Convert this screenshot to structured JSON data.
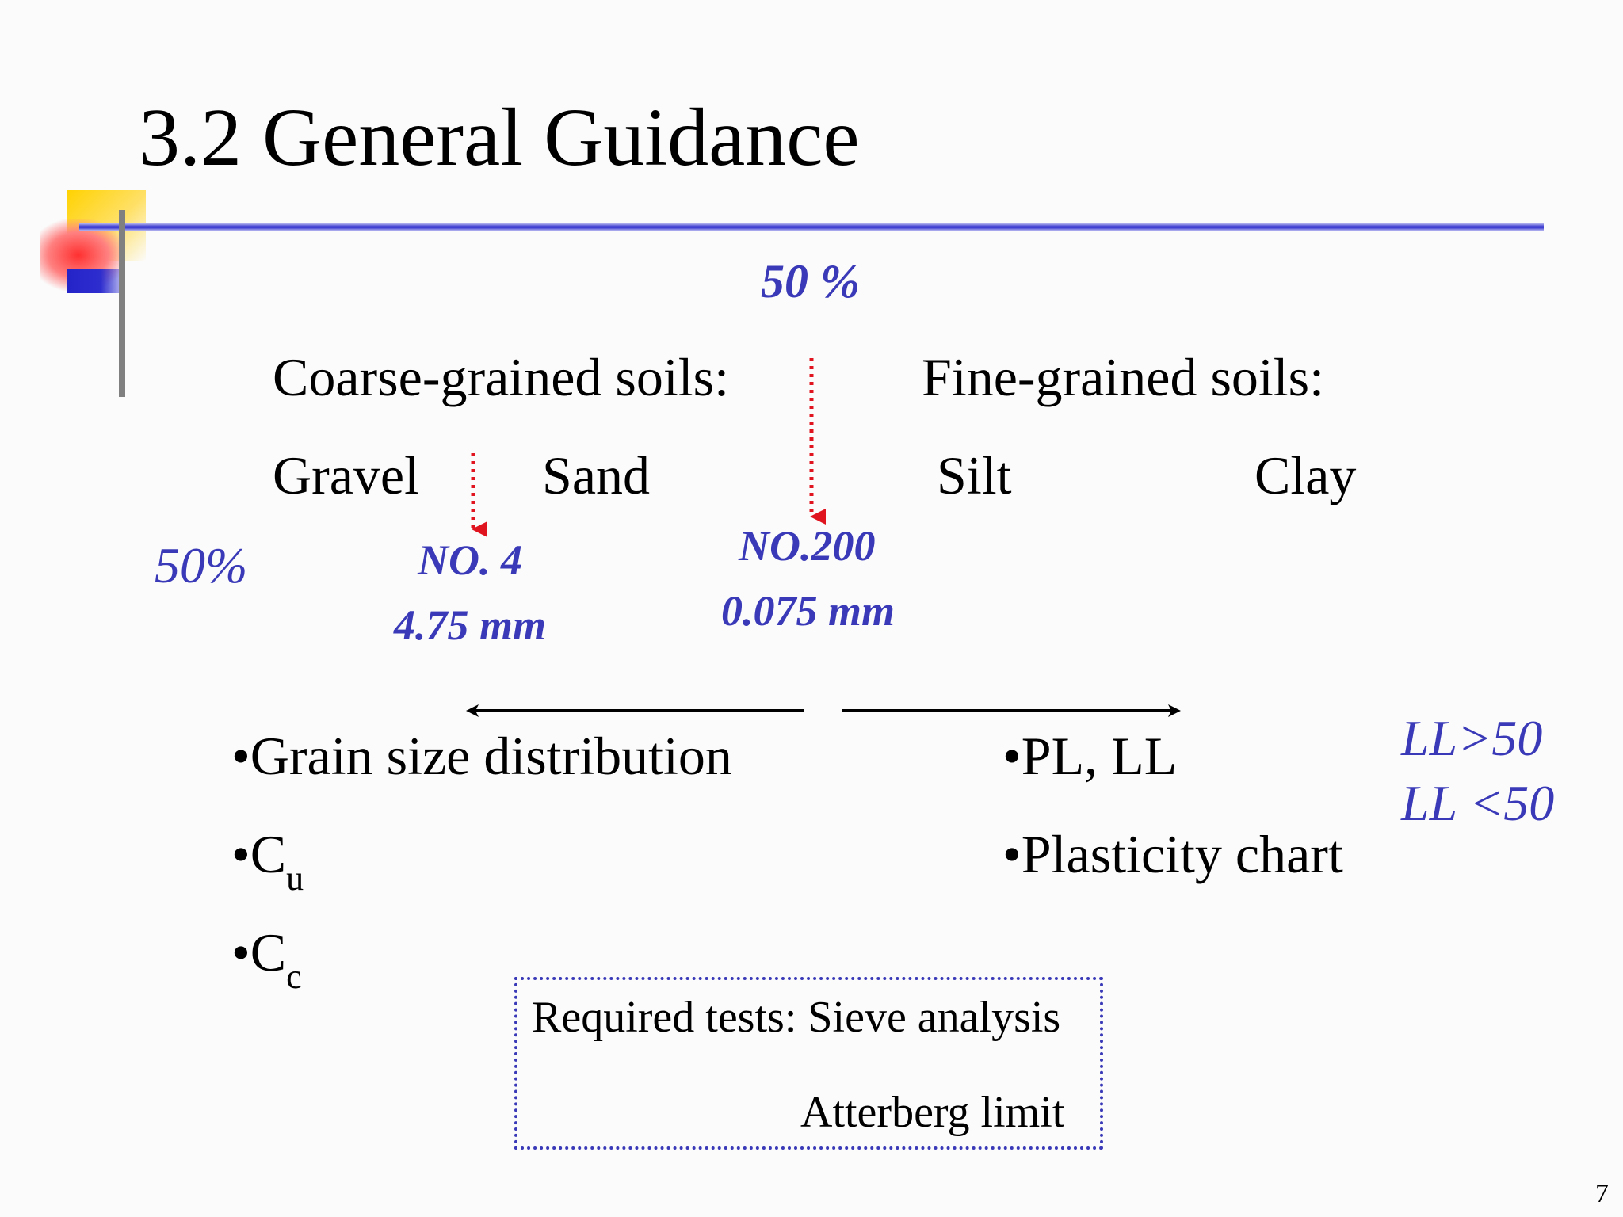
{
  "slide": {
    "title": "3.2 General Guidance",
    "page_number": "7"
  },
  "labels": {
    "percent_top": "50 %",
    "percent_left": "50%",
    "coarse_heading": "Coarse-grained soils:",
    "fine_heading": "Fine-grained soils:",
    "gravel": "Gravel",
    "sand": "Sand",
    "silt": "Silt",
    "clay": "Clay",
    "sieve_no4": "NO. 4",
    "sieve_no4_size": "4.75 mm",
    "sieve_no200": "NO.200",
    "sieve_no200_size": "0.075 mm"
  },
  "coarse_list": [
    {
      "text": "•Grain size distribution"
    },
    {
      "text": "•C",
      "sub": "u"
    },
    {
      "text": "•C",
      "sub": "c"
    }
  ],
  "fine_list": [
    {
      "text": "•PL, LL"
    },
    {
      "text": "•Plasticity chart"
    }
  ],
  "ll_notes": [
    "LL>50",
    "LL <50"
  ],
  "required_tests": {
    "line1": "Required tests: Sieve analysis",
    "line2": "Atterberg limit"
  },
  "colors": {
    "accent_blue": "#3a3ab8",
    "marker_red": "#e0141e"
  }
}
